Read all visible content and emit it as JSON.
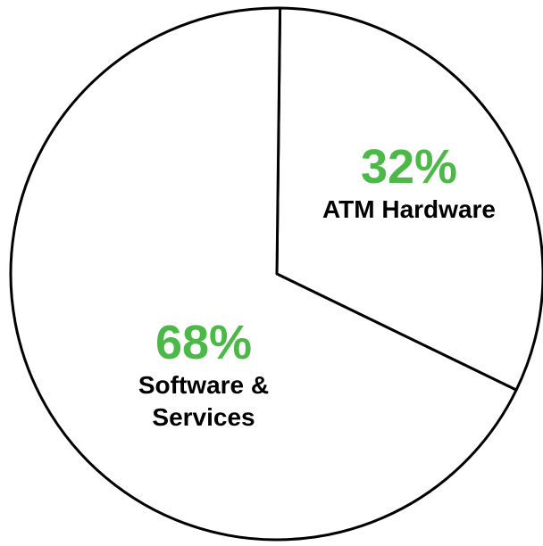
{
  "chart_data": {
    "type": "pie",
    "categories": [
      "ATM Hardware",
      "Software & Services"
    ],
    "values": [
      32,
      68
    ],
    "value_labels": [
      "32%",
      "68%"
    ],
    "color": "#ffffff",
    "label_color": "#4cb848"
  }
}
